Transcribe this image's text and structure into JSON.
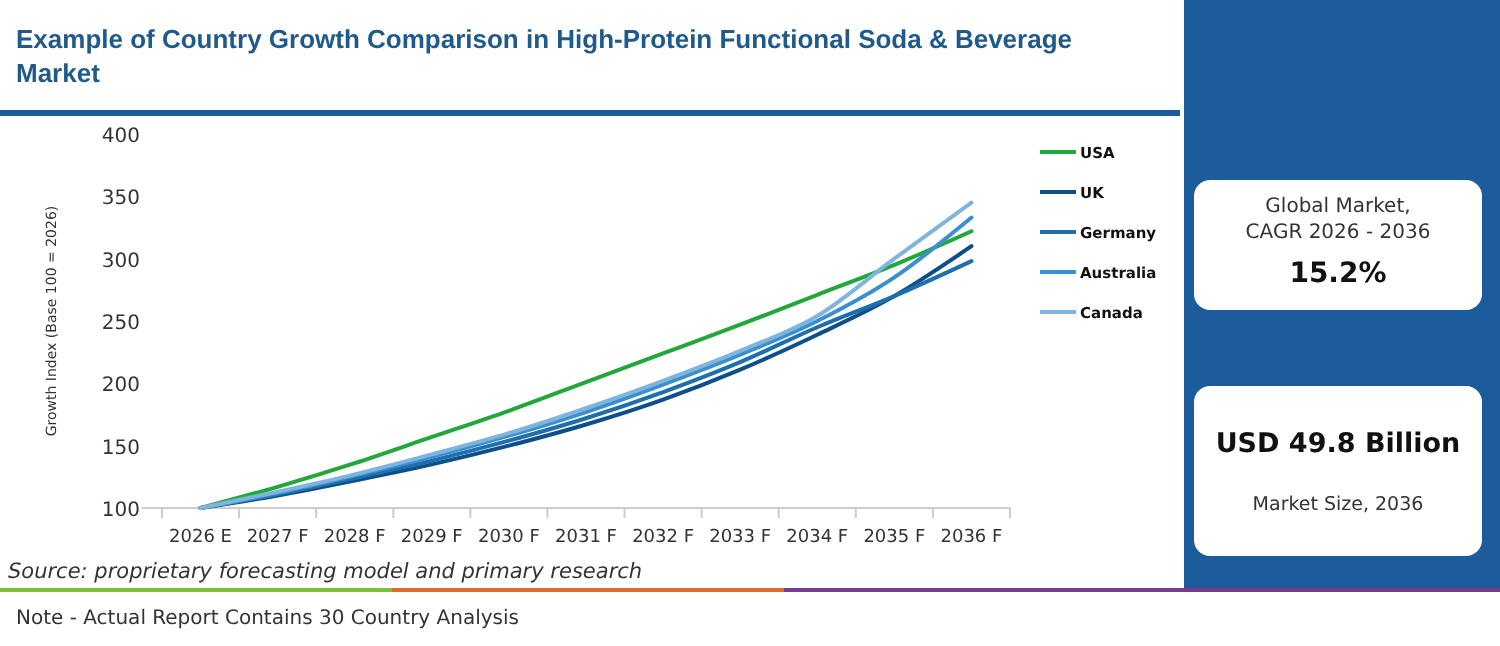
{
  "chart_data": {
    "type": "line",
    "title": "Example of Country Growth Comparison in High-Protein Functional Soda & Beverage Market",
    "ylabel": "Growth Index (Base 100 = 2026)",
    "categories": [
      "2026 E",
      "2027 F",
      "2028 F",
      "2029 F",
      "2030 F",
      "2031 F",
      "2032 F",
      "2033 F",
      "2034 F",
      "2035 F",
      "2036 F"
    ],
    "series": [
      {
        "name": "USA",
        "color": "#22a83a",
        "values": [
          100,
          117,
          136,
          157,
          178,
          201,
          224,
          247,
          271,
          295,
          322
        ]
      },
      {
        "name": "UK",
        "color": "#0d4f8b",
        "values": [
          100,
          110,
          122,
          135,
          150,
          167,
          187,
          211,
          239,
          270,
          310
        ]
      },
      {
        "name": "Germany",
        "color": "#1f6fad",
        "values": [
          100,
          111,
          124,
          138,
          154,
          172,
          193,
          217,
          245,
          270,
          298
        ]
      },
      {
        "name": "Australia",
        "color": "#3a8fd0",
        "values": [
          100,
          112,
          126,
          141,
          158,
          177,
          199,
          223,
          250,
          285,
          333
        ]
      },
      {
        "name": "Canada",
        "color": "#7fb5dd",
        "values": [
          100,
          113,
          127,
          143,
          160,
          180,
          202,
          226,
          254,
          300,
          345
        ]
      }
    ],
    "ylim": [
      100,
      400
    ],
    "yticks": [
      100,
      150,
      200,
      250,
      300,
      350,
      400
    ],
    "grid": false,
    "legend": "right",
    "marker": "none",
    "line_style": "solid",
    "annotations": [
      "Source: proprietary forecasting model and primary research",
      "Note - Actual Report Contains 30 Country Analysis",
      "Global Market,\nCAGR 2026 - 2036",
      "15.2%",
      "USD 49.8 Billion",
      "Market Size, 2036"
    ]
  }
}
